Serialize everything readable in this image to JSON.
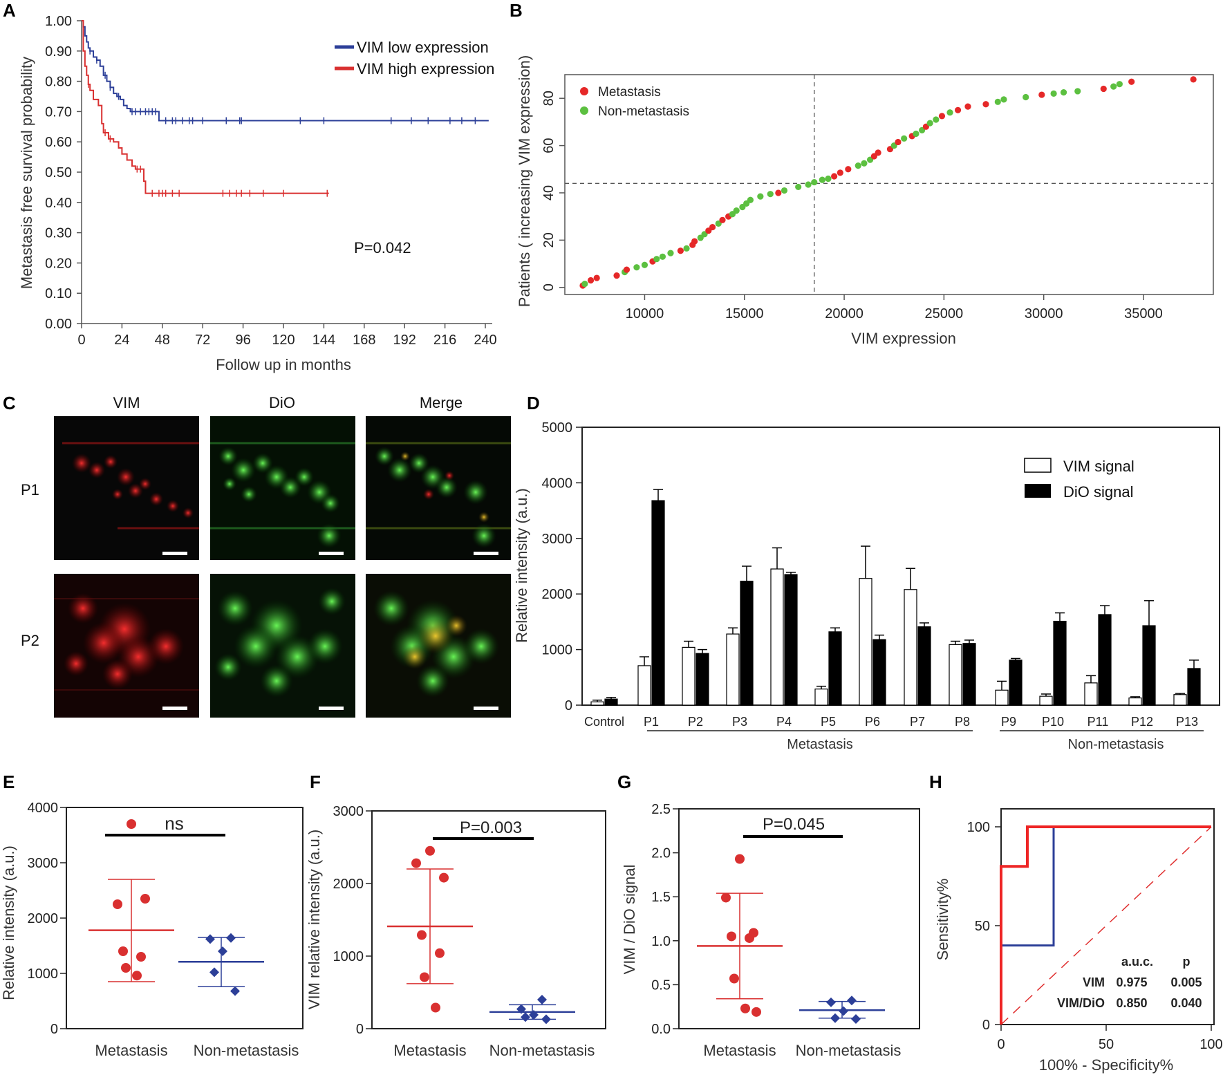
{
  "figure": {
    "panels": [
      "A",
      "B",
      "C",
      "D",
      "E",
      "F",
      "G",
      "H"
    ],
    "colors": {
      "red": "#d93030",
      "blue": "#2c3f98",
      "green": "#5cc040",
      "black": "#000000"
    }
  },
  "chart_data": [
    {
      "id": "A",
      "type": "line",
      "title": "",
      "xlabel": "Follow up in months",
      "ylabel": "Metastasis free survival probability",
      "xlim": [
        0,
        240
      ],
      "ylim": [
        0,
        1
      ],
      "x_ticks": [
        "0",
        "24",
        "48",
        "72",
        "96",
        "120",
        "144",
        "168",
        "192",
        "216",
        "240"
      ],
      "y_ticks": [
        "0.00",
        "0.10",
        "0.20",
        "0.30",
        "0.40",
        "0.50",
        "0.60",
        "0.70",
        "0.80",
        "0.90",
        "1.00"
      ],
      "annotation": "P=0.042",
      "series": [
        {
          "name": "VIM low expression",
          "x": [
            0,
            1,
            2,
            3,
            4,
            5,
            7,
            9,
            11,
            13,
            15,
            17,
            19,
            21,
            23,
            25,
            27,
            29,
            31,
            46,
            242
          ],
          "y": [
            1.0,
            0.98,
            0.95,
            0.93,
            0.91,
            0.9,
            0.88,
            0.87,
            0.85,
            0.82,
            0.8,
            0.78,
            0.76,
            0.75,
            0.74,
            0.72,
            0.71,
            0.7,
            0.7,
            0.67,
            0.67
          ],
          "censor_x": [
            5,
            9,
            14,
            17,
            22,
            30,
            32,
            35,
            38,
            40,
            42,
            44,
            50,
            54,
            56,
            60,
            64,
            66,
            72,
            86,
            94,
            95,
            130,
            144,
            184,
            196,
            206,
            219,
            226,
            234
          ]
        },
        {
          "name": "VIM high expression",
          "x": [
            0,
            1,
            2,
            3,
            4,
            5,
            7,
            10,
            12,
            13,
            16,
            19,
            22,
            24,
            27,
            30,
            32,
            33,
            37,
            38,
            147
          ],
          "y": [
            1.0,
            0.9,
            0.85,
            0.82,
            0.79,
            0.77,
            0.74,
            0.72,
            0.66,
            0.63,
            0.61,
            0.6,
            0.58,
            0.56,
            0.54,
            0.52,
            0.51,
            0.51,
            0.47,
            0.43,
            0.43
          ],
          "censor_x": [
            4,
            14,
            17,
            33,
            35,
            42,
            46,
            48,
            50,
            54,
            58,
            84,
            88,
            92,
            95,
            100,
            108,
            120,
            146
          ]
        }
      ]
    },
    {
      "id": "B",
      "type": "scatter",
      "xlabel": "VIM expression",
      "ylabel": "Patients ( increasing VIM expression)",
      "xlim": [
        6000,
        38500
      ],
      "ylim": [
        -3,
        90
      ],
      "x_ticks": [
        "10000",
        "15000",
        "20000",
        "25000",
        "30000",
        "35000"
      ],
      "y_ticks": [
        "0",
        "20",
        "40",
        "60",
        "80"
      ],
      "ref_lines": {
        "x": 18500,
        "y": 44
      },
      "legend": [
        "Metastasis",
        "Non-metastasis"
      ]
    },
    {
      "id": "D",
      "type": "bar",
      "ylabel": "Relative intensity (a.u.)",
      "ylim": [
        0,
        5000
      ],
      "y_ticks": [
        "0",
        "1000",
        "2000",
        "3000",
        "4000",
        "5000"
      ],
      "categories": [
        "Control",
        "P1",
        "P2",
        "P3",
        "P4",
        "P5",
        "P6",
        "P7",
        "P8",
        "P9",
        "P10",
        "P11",
        "P12",
        "P13"
      ],
      "groups": [
        "Metastasis",
        "Non-metastasis"
      ],
      "series": [
        {
          "name": "VIM signal",
          "values": [
            60,
            710,
            1040,
            1280,
            2450,
            290,
            2280,
            2080,
            1090,
            270,
            160,
            400,
            130,
            190
          ],
          "errors": [
            30,
            160,
            110,
            110,
            380,
            50,
            580,
            380,
            60,
            160,
            40,
            130,
            20,
            20
          ]
        },
        {
          "name": "DiO signal",
          "values": [
            110,
            3680,
            930,
            2230,
            2350,
            1320,
            1180,
            1410,
            1110,
            810,
            1510,
            1630,
            1430,
            660
          ],
          "errors": [
            30,
            200,
            70,
            270,
            40,
            70,
            80,
            70,
            60,
            30,
            150,
            160,
            450,
            150
          ]
        }
      ]
    },
    {
      "id": "E",
      "type": "scatter",
      "ylabel": "Relative intensity (a.u.)",
      "ylim": [
        0,
        4000
      ],
      "y_ticks": [
        "0",
        "1000",
        "2000",
        "3000",
        "4000"
      ],
      "categories": [
        "Metastasis",
        "Non-metastasis"
      ],
      "annotation": "ns",
      "groups": [
        {
          "name": "Metastasis",
          "values": [
            3700,
            2250,
            2350,
            1400,
            1300,
            1100,
            960
          ],
          "mean": 1780,
          "sd_low": 850,
          "sd_high": 2700
        },
        {
          "name": "Non-metastasis",
          "values": [
            1640,
            1620,
            1400,
            1020,
            680
          ],
          "mean": 1210,
          "sd_low": 760,
          "sd_high": 1650
        }
      ]
    },
    {
      "id": "F",
      "type": "scatter",
      "ylabel": "VIM relative intensity (a.u.)",
      "ylim": [
        0,
        3000
      ],
      "y_ticks": [
        "0",
        "1000",
        "2000",
        "3000"
      ],
      "categories": [
        "Metastasis",
        "Non-metastasis"
      ],
      "annotation": "P=0.003",
      "groups": [
        {
          "name": "Metastasis",
          "values": [
            2450,
            2280,
            2080,
            1290,
            1040,
            710,
            290
          ],
          "mean": 1410,
          "sd_low": 620,
          "sd_high": 2200
        },
        {
          "name": "Non-metastasis",
          "values": [
            400,
            270,
            190,
            160,
            130
          ],
          "mean": 230,
          "sd_low": 130,
          "sd_high": 330
        }
      ]
    },
    {
      "id": "G",
      "type": "scatter",
      "ylabel": "VIM / DiO signal",
      "ylim": [
        0,
        2.5
      ],
      "y_ticks": [
        "0.0",
        "0.5",
        "1.0",
        "1.5",
        "2.0",
        "2.5"
      ],
      "categories": [
        "Metastasis",
        "Non-metastasis"
      ],
      "annotation": "P=0.045",
      "groups": [
        {
          "name": "Metastasis",
          "values": [
            1.93,
            1.49,
            1.09,
            1.05,
            1.03,
            0.57,
            0.23,
            0.19
          ],
          "mean": 0.94,
          "sd_low": 0.34,
          "sd_high": 1.54
        },
        {
          "name": "Non-metastasis",
          "values": [
            0.32,
            0.3,
            0.2,
            0.12,
            0.11
          ],
          "mean": 0.21,
          "sd_low": 0.12,
          "sd_high": 0.31
        }
      ]
    },
    {
      "id": "H",
      "type": "line",
      "xlabel": "100% - Specificity%",
      "ylabel": "Sensitivity%",
      "xlim": [
        0,
        100
      ],
      "ylim": [
        0,
        100
      ],
      "x_ticks": [
        "0",
        "50",
        "100"
      ],
      "y_ticks": [
        "0",
        "50",
        "100"
      ],
      "table": {
        "headers": [
          "a.u.c.",
          "p"
        ],
        "rows": [
          {
            "label": "VIM",
            "auc": "0.975",
            "p": "0.005"
          },
          {
            "label": "VIM/DiO",
            "auc": "0.850",
            "p": "0.040"
          }
        ]
      },
      "series": [
        {
          "name": "VIM",
          "x": [
            0,
            0,
            12.5,
            12.5,
            100
          ],
          "y": [
            0,
            80,
            80,
            100,
            100
          ]
        },
        {
          "name": "VIM/DiO",
          "x": [
            0,
            0,
            25,
            25,
            100
          ],
          "y": [
            0,
            40,
            40,
            100,
            100
          ]
        },
        {
          "name": "Reference",
          "x": [
            0,
            100
          ],
          "y": [
            0,
            100
          ]
        }
      ]
    }
  ],
  "panelC": {
    "columns": [
      "VIM",
      "DiO",
      "Merge"
    ],
    "rows": [
      "P1",
      "P2"
    ]
  }
}
